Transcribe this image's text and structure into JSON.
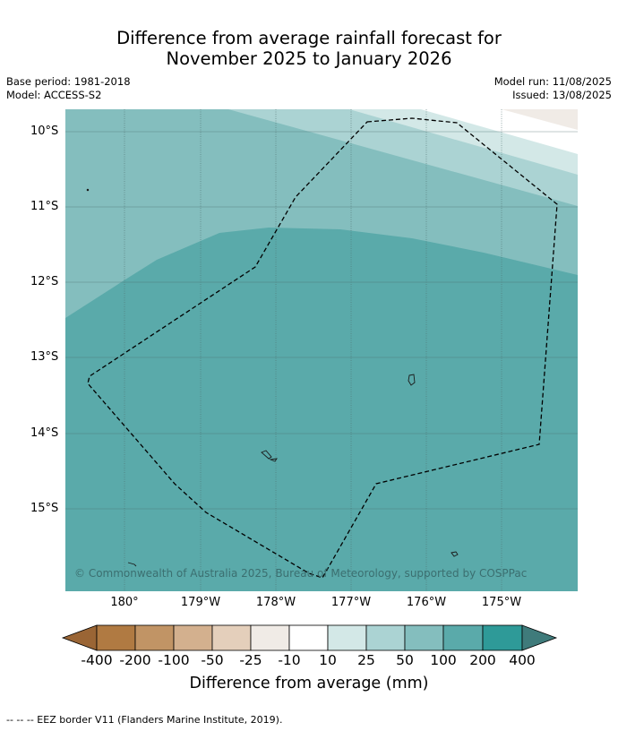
{
  "title": {
    "line1": "Difference from average rainfall forecast for",
    "line2": "November 2025 to January 2026"
  },
  "meta": {
    "base_period": "Base period: 1981-2018",
    "model": "Model: ACCESS-S2",
    "model_run": "Model run: 11/08/2025",
    "issued": "Issued: 13/08/2025"
  },
  "map": {
    "lat_labels": [
      "10°S",
      "11°S",
      "12°S",
      "13°S",
      "14°S",
      "15°S"
    ],
    "lon_labels": [
      "180°",
      "179°W",
      "178°W",
      "177°W",
      "176°W",
      "175°W"
    ],
    "copyright": "© Commonwealth of Australia 2025, Bureau of Meteorology, supported by COSPPac"
  },
  "colorbar": {
    "ticks": [
      "-400",
      "-200",
      "-100",
      "-50",
      "-25",
      "-10",
      "10",
      "25",
      "50",
      "100",
      "200",
      "400"
    ],
    "colors": [
      "#9a6535",
      "#b07a42",
      "#c19465",
      "#d3b08e",
      "#e4cfbb",
      "#f0ebe6",
      "#ffffff",
      "#d3e8e7",
      "#abd3d3",
      "#84bebe",
      "#5aaaaa",
      "#2e9a98",
      "#3f7b7b"
    ],
    "title": "Difference from average (mm)"
  },
  "footnote": "--  --  -- EEZ border V11 (Flanders Marine Institute, 2019)."
}
